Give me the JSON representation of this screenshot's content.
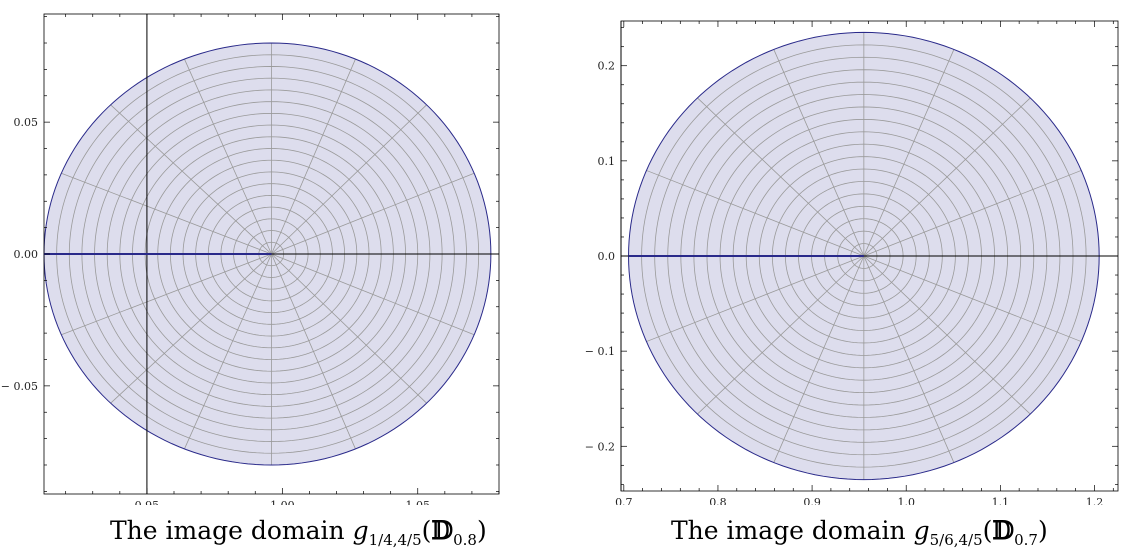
{
  "chart_data": [
    {
      "type": "scatter",
      "title": "",
      "xlabel": "",
      "ylabel": "",
      "xlim": [
        0.912,
        1.08
      ],
      "ylim": [
        -0.091,
        0.091
      ],
      "xticks": [
        0.95,
        1.0,
        1.05
      ],
      "xtick_labels": [
        "0.95",
        "1.00",
        "1.05"
      ],
      "yticks": [
        0.05,
        0.0,
        -0.05
      ],
      "ytick_labels": [
        "0.05",
        "0.00",
        "− 0.05"
      ],
      "axis_origin": {
        "x": 0.95,
        "y": 0.0
      },
      "domain": {
        "center": [
          0.996,
          0.0
        ],
        "x_min": 0.912,
        "x_max": 1.077,
        "y_min": -0.08,
        "y_max": 0.08
      },
      "grid": {
        "circles": 18,
        "rays": 16
      },
      "fill_color": "#dddded",
      "edge_color": "#2a2a8a",
      "grid_color": "#9a9a9a",
      "caption": {
        "text": "The image domain ",
        "func": "g",
        "sub": "1/4,4/5",
        "set": "𝔻",
        "set_sub": "0.8"
      }
    },
    {
      "type": "scatter",
      "title": "",
      "xlabel": "",
      "ylabel": "",
      "xlim": [
        0.697,
        1.225
      ],
      "ylim": [
        -0.247,
        0.247
      ],
      "xticks": [
        0.7,
        0.8,
        0.9,
        1.0,
        1.1,
        1.2
      ],
      "xtick_labels": [
        "0.7",
        "0.8",
        "0.9",
        "1.0",
        "1.1",
        "1.2"
      ],
      "yticks": [
        0.2,
        0.1,
        0.0,
        -0.1,
        -0.2
      ],
      "ytick_labels": [
        "0.2",
        "0.1",
        "0.0",
        "− 0.1",
        "− 0.2"
      ],
      "axis_origin": {
        "x": 0.697,
        "y": 0.0
      },
      "domain": {
        "center": [
          0.955,
          0.0
        ],
        "x_min": 0.705,
        "x_max": 1.205,
        "y_min": -0.235,
        "y_max": 0.235
      },
      "grid": {
        "circles": 18,
        "rays": 16
      },
      "fill_color": "#dddded",
      "edge_color": "#2a2a8a",
      "grid_color": "#9a9a9a",
      "caption": {
        "text": "The image domain ",
        "func": "g",
        "sub": "5/6,4/5",
        "set": "𝔻",
        "set_sub": "0.7"
      }
    }
  ]
}
